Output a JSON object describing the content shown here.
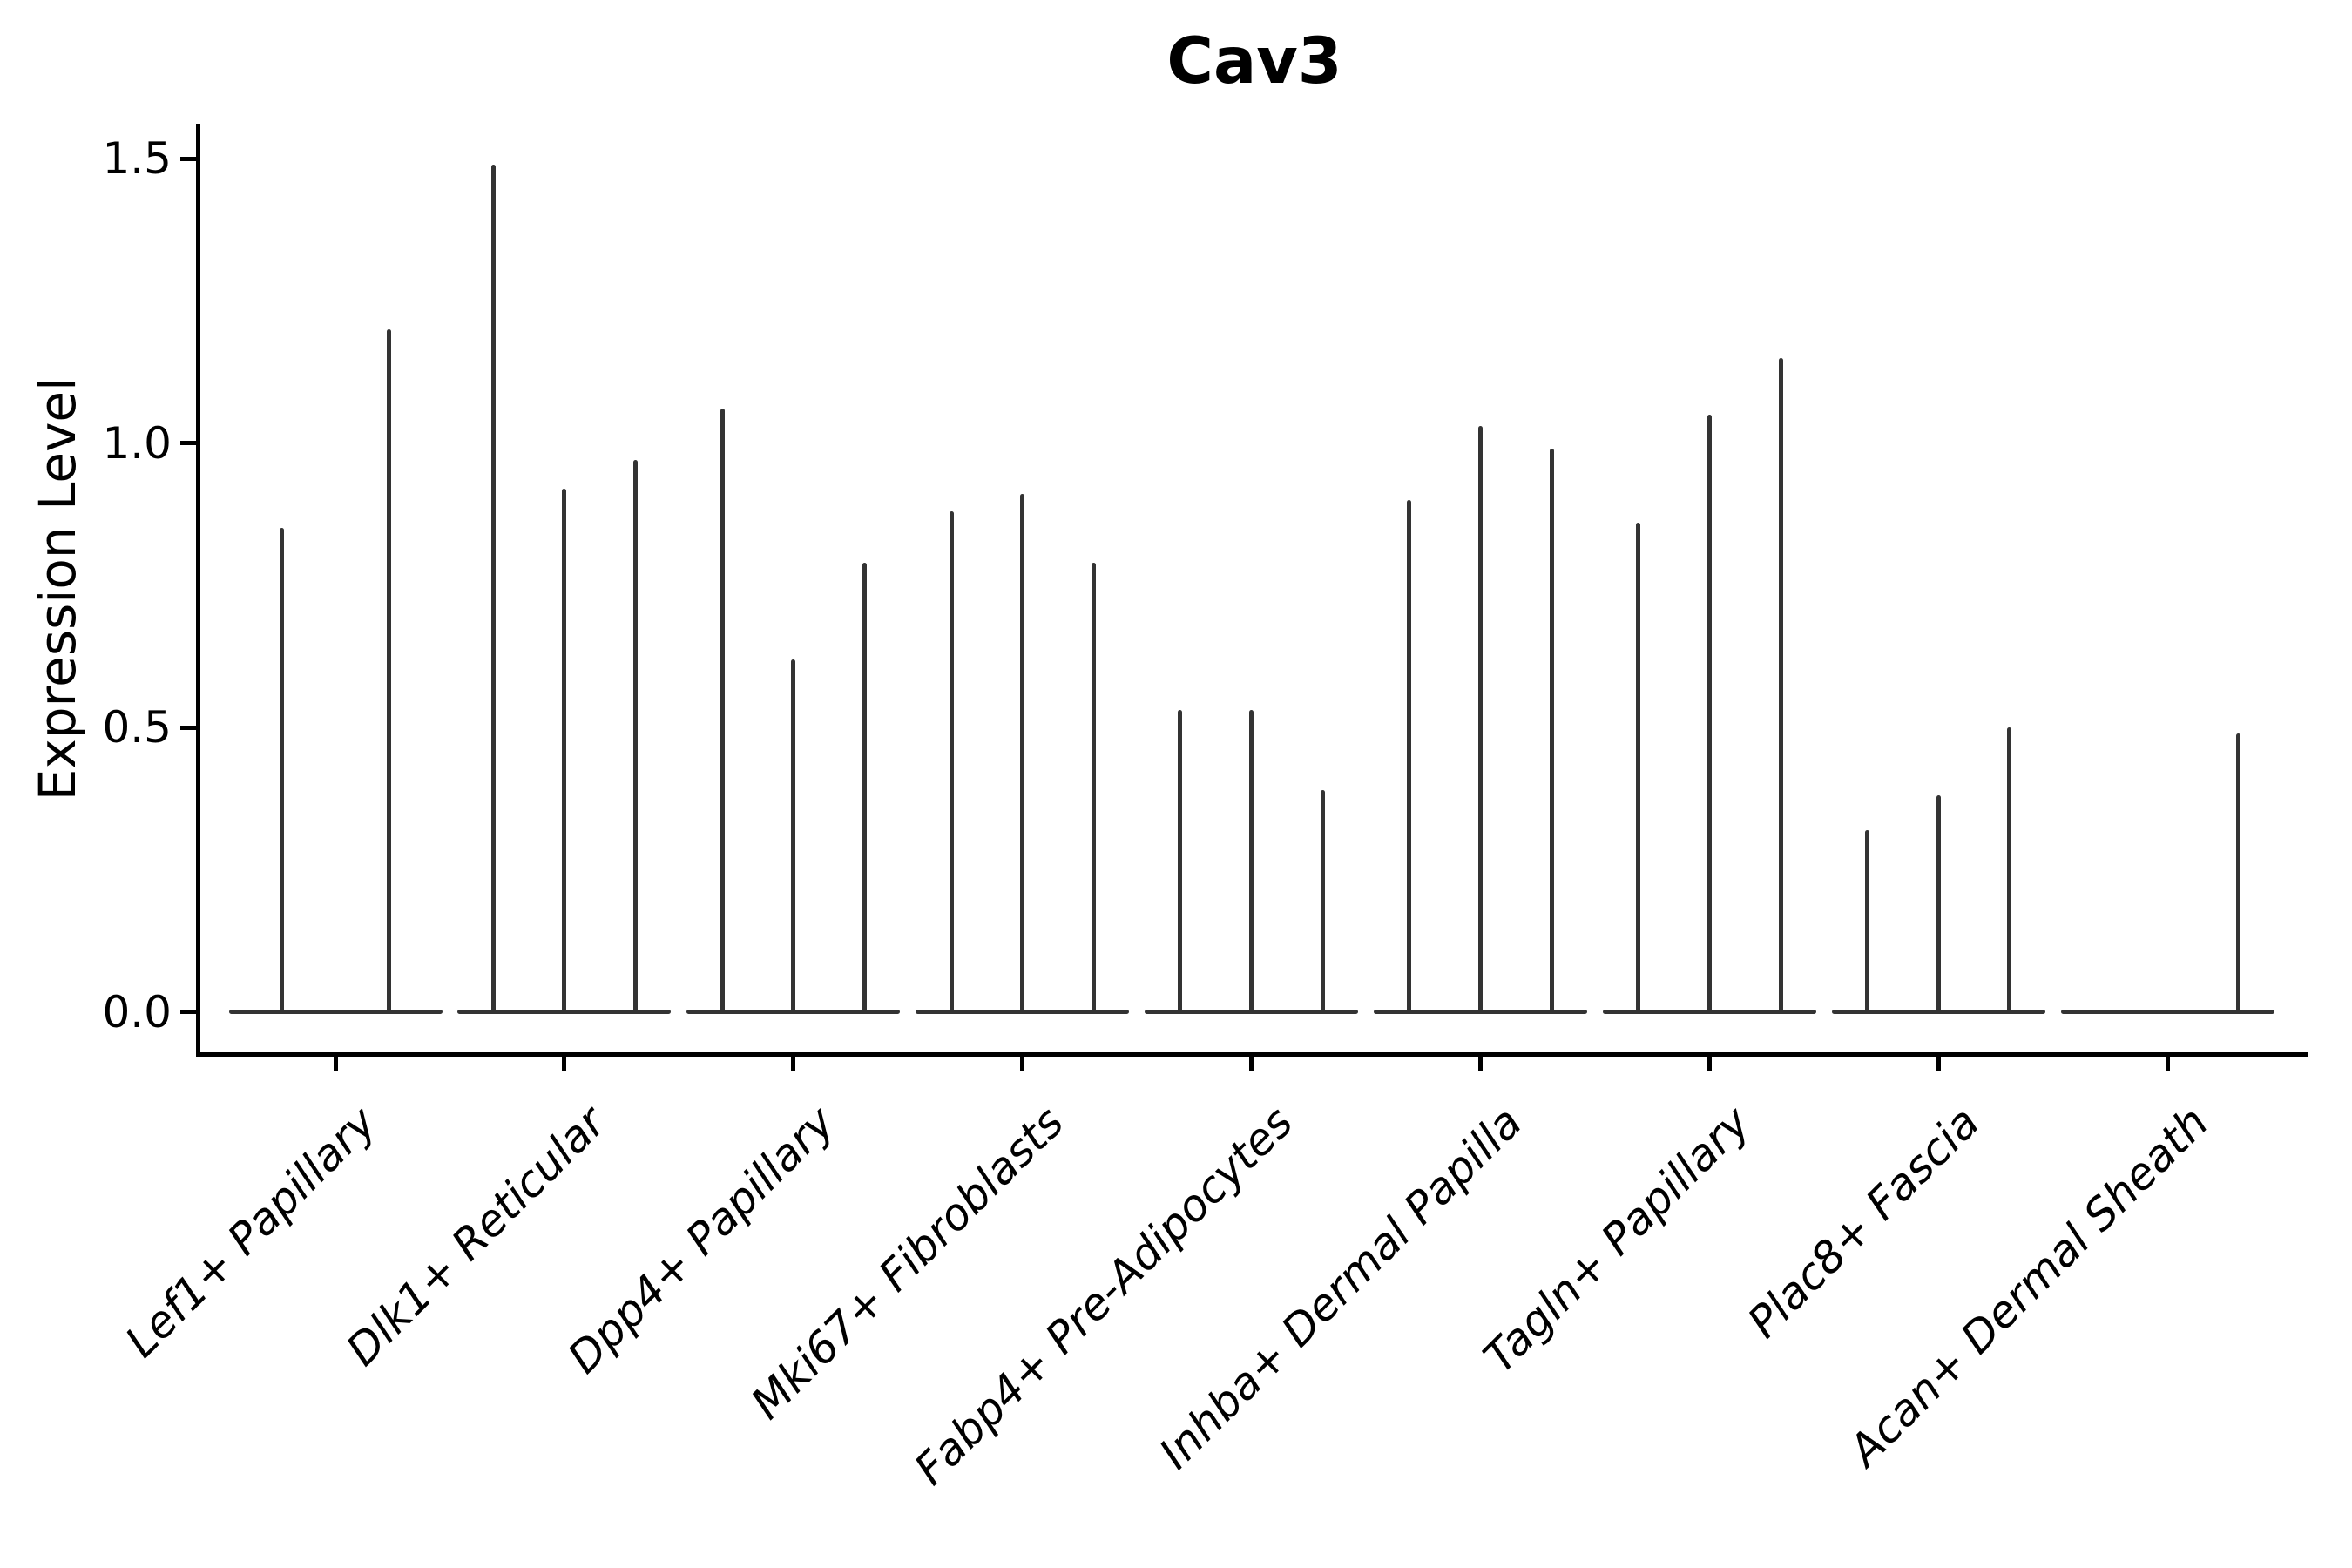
{
  "chart_data": {
    "type": "violin",
    "title": "Cav3",
    "xlabel": "",
    "ylabel": "Expression Level",
    "ylim": [
      -0.07,
      1.56
    ],
    "yticks": [
      0.0,
      0.5,
      1.0,
      1.5
    ],
    "ytick_labels": [
      "0.0",
      "0.5",
      "1.0",
      "1.5"
    ],
    "grid": "off",
    "legend": "none",
    "violin_color": "#333333",
    "axis_color": "#000000",
    "categories": [
      "Lef1+ Papillary",
      "Dlk1+ Reticular",
      "Dpp4+ Papillary",
      "Mki67+ Fibroblasts",
      "Fabp4+ Pre-Adipocytes",
      "Inhba+ Dermal Papilla",
      "Tagln+ Papillary",
      "Plac8+ Fascia",
      "Acan+ Dermal Sheath"
    ],
    "groups": [
      {
        "label": "Lef1+ Papillary",
        "spike_max_values": [
          0.85,
          1.2
        ]
      },
      {
        "label": "Dlk1+ Reticular",
        "spike_max_values": [
          1.49,
          0.92,
          0.97
        ]
      },
      {
        "label": "Dpp4+ Papillary",
        "spike_max_values": [
          1.06,
          0.62,
          0.79
        ]
      },
      {
        "label": "Mki67+ Fibroblasts",
        "spike_max_values": [
          0.88,
          0.91,
          0.79
        ]
      },
      {
        "label": "Fabp4+ Pre-Adipocytes",
        "spike_max_values": [
          0.53,
          0.53,
          0.39
        ]
      },
      {
        "label": "Inhba+ Dermal Papilla",
        "spike_max_values": [
          0.9,
          1.03,
          0.99
        ]
      },
      {
        "label": "Tagln+ Papillary",
        "spike_max_values": [
          0.86,
          1.05,
          1.15
        ]
      },
      {
        "label": "Plac8+ Fascia",
        "spike_max_values": [
          0.32,
          0.38,
          0.5
        ]
      },
      {
        "label": "Acan+ Dermal Sheath",
        "spike_max_values": [
          0.0,
          0.0,
          0.49
        ]
      }
    ],
    "note": "Each violin is collapsed at expression 0 (flat horizontal body) with a thin spike up to the listed max expression value; 0.0 means a completely flat violin with no spike."
  }
}
